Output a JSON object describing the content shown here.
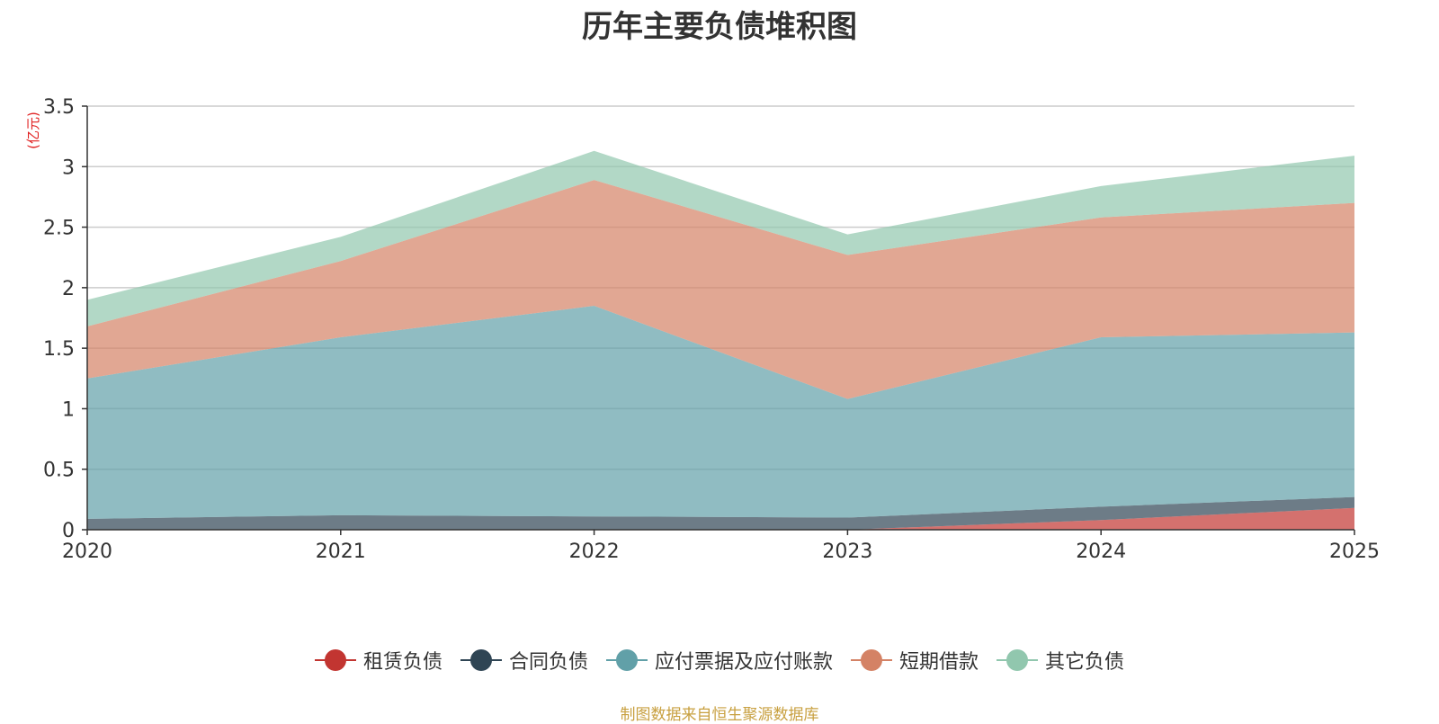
{
  "chart_data": {
    "type": "area",
    "stacked": true,
    "title": "历年主要负债堆积图",
    "unit": "(亿元)",
    "x": [
      "2020",
      "2021",
      "2022",
      "2023",
      "2024",
      "2025"
    ],
    "ylim": [
      0,
      3.5
    ],
    "yticks": [
      0,
      0.5,
      1,
      1.5,
      2,
      2.5,
      3,
      3.5
    ],
    "ytick_labels": [
      "0",
      "0.5",
      "1",
      "1.5",
      "2",
      "2.5",
      "3",
      "3.5"
    ],
    "grid": true,
    "legend_position": "bottom-center",
    "series": [
      {
        "name": "租赁负债",
        "color": "#c23531",
        "values": [
          0,
          0,
          0,
          0,
          0.08,
          0.18
        ]
      },
      {
        "name": "合同负债",
        "color": "#2f4554",
        "values": [
          0.09,
          0.12,
          0.11,
          0.1,
          0.11,
          0.09
        ]
      },
      {
        "name": "应付票据及应付账款",
        "color": "#61a0a8",
        "values": [
          1.16,
          1.47,
          1.74,
          0.98,
          1.4,
          1.36
        ]
      },
      {
        "name": "短期借款",
        "color": "#d48265",
        "values": [
          0.43,
          0.63,
          1.04,
          1.19,
          0.99,
          1.07
        ]
      },
      {
        "name": "其它负债",
        "color": "#91c7ae",
        "values": [
          0.22,
          0.2,
          0.24,
          0.17,
          0.26,
          0.39
        ]
      }
    ]
  },
  "footer": {
    "source_text": "制图数据来自恒生聚源数据库"
  }
}
